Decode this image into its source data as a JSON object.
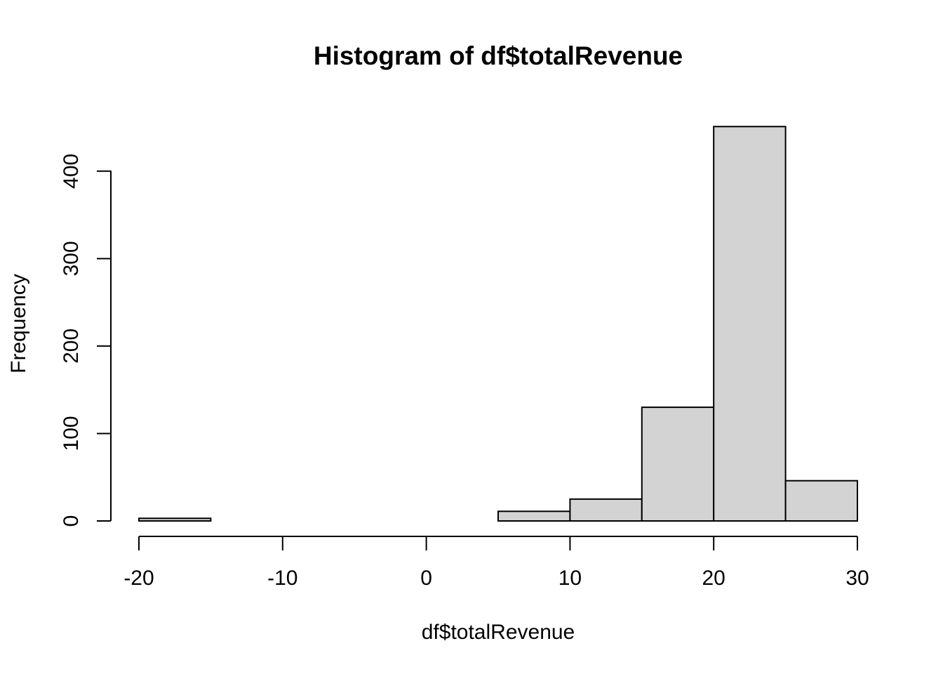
{
  "chart_data": {
    "type": "bar",
    "title": "Histogram of df$totalRevenue",
    "xlabel": "df$totalRevenue",
    "ylabel": "Frequency",
    "bins": [
      {
        "from": -20,
        "to": -15,
        "count": 3
      },
      {
        "from": -15,
        "to": -10,
        "count": 0
      },
      {
        "from": -10,
        "to": -5,
        "count": 0
      },
      {
        "from": -5,
        "to": 0,
        "count": 0
      },
      {
        "from": 0,
        "to": 5,
        "count": 0
      },
      {
        "from": 5,
        "to": 10,
        "count": 11
      },
      {
        "from": 10,
        "to": 15,
        "count": 25
      },
      {
        "from": 15,
        "to": 20,
        "count": 130
      },
      {
        "from": 20,
        "to": 25,
        "count": 451
      },
      {
        "from": 25,
        "to": 30,
        "count": 46
      }
    ],
    "xlim": [
      -20,
      30
    ],
    "ylim": [
      0,
      451
    ],
    "x_ticks": [
      -20,
      -10,
      0,
      10,
      20,
      30
    ],
    "y_ticks": [
      0,
      100,
      200,
      300,
      400
    ],
    "bar_color": "#d3d3d3",
    "grid": false
  }
}
